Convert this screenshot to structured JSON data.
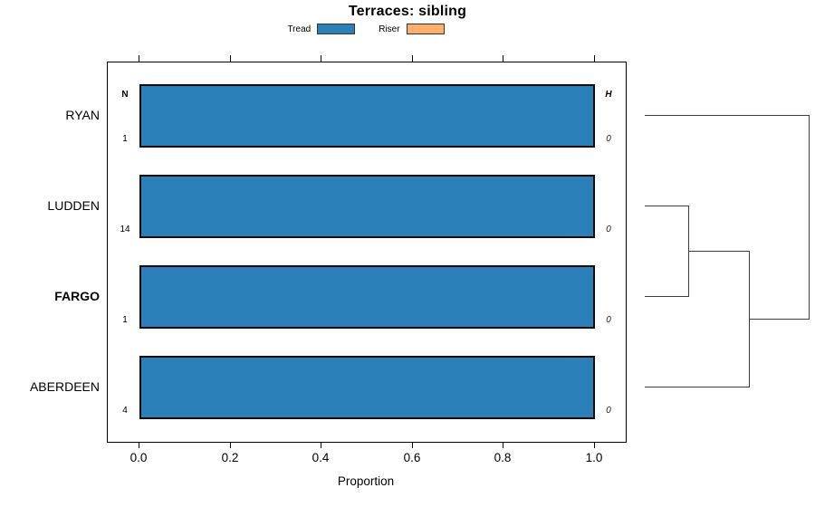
{
  "title": "Terraces: sibling",
  "chart_data": {
    "type": "bar",
    "orientation": "horizontal",
    "title": "Terraces: sibling",
    "xlabel": "Proportion",
    "xlim": [
      0,
      1.05
    ],
    "x_ticks": [
      "0.0",
      "0.2",
      "0.4",
      "0.6",
      "0.8",
      "1.0"
    ],
    "grid": false,
    "legend_position": "top-center",
    "legend": [
      {
        "label": "Tread",
        "color": "#2C80B9"
      },
      {
        "label": "Riser",
        "color": "#FDAE6B"
      }
    ],
    "columns": {
      "count_header": "N",
      "height_header": "H"
    },
    "rows": [
      {
        "label": "RYAN",
        "emphasis": false,
        "n": "1",
        "h": "0",
        "values": {
          "Tread": 1.0,
          "Riser": 0.0
        }
      },
      {
        "label": "LUDDEN",
        "emphasis": false,
        "n": "14",
        "h": "0",
        "values": {
          "Tread": 1.0,
          "Riser": 0.0
        }
      },
      {
        "label": "FARGO",
        "emphasis": true,
        "n": "1",
        "h": "0",
        "values": {
          "Tread": 1.0,
          "Riser": 0.0
        }
      },
      {
        "label": "ABERDEEN",
        "emphasis": false,
        "n": "4",
        "h": "0",
        "values": {
          "Tread": 1.0,
          "Riser": 0.0
        }
      }
    ],
    "dendrogram": {
      "position": "right",
      "leaf_order": [
        "RYAN",
        "LUDDEN",
        "FARGO",
        "ABERDEEN"
      ],
      "merges": [
        [
          "LUDDEN",
          "FARGO"
        ],
        [
          [
            "LUDDEN",
            "FARGO"
          ],
          "ABERDEEN"
        ],
        [
          [
            [
              "LUDDEN",
              "FARGO"
            ],
            "ABERDEEN"
          ],
          "RYAN"
        ]
      ]
    }
  }
}
